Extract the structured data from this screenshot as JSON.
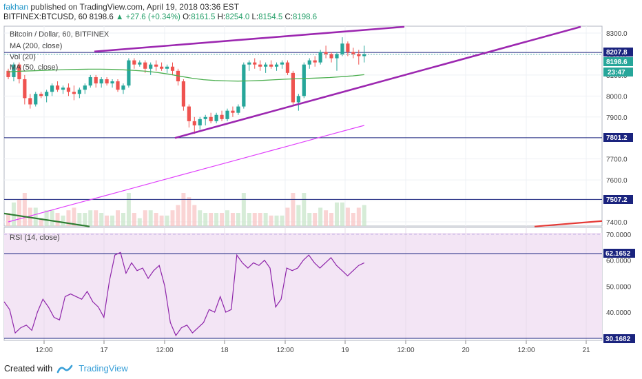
{
  "header": {
    "author": "fakhan",
    "published": "published on TradingView.com, April 19, 2018 03:36 EST",
    "symbol": "BITFINEX:BTCUSD, 60",
    "last": "8198.6",
    "change": "▲ +27.6 (+0.34%)",
    "o_label": "O:",
    "o": "8161.5",
    "h_label": "H:",
    "h": "8254.0",
    "l_label": "L:",
    "l": "8154.5",
    "c_label": "C:",
    "c": "8198.6"
  },
  "legend": {
    "title": "Bitcoin / Dollar, 60, BITFINEX",
    "ma200": "MA (200, close)",
    "vol": "Vol (20)",
    "ma50": "MA (50, close)",
    "rsi": "RSI (14, close)"
  },
  "price_tags": {
    "resistance": "8207.8",
    "last": "8198.6",
    "countdown": "23:47",
    "support1": "7801.2",
    "support2": "7507.2"
  },
  "rsi_tags": {
    "upper": "62.1652",
    "lower": "30.1682"
  },
  "footer": {
    "created": "Created with",
    "brand": "TradingView"
  },
  "colors": {
    "up": "#26a69a",
    "down": "#ef5350",
    "ma50": "#4caf50",
    "ma200": "#e040fb",
    "trend": "#9c27b0",
    "level": "#1a237e",
    "rsi": "#8e24aa",
    "rsi_bg": "#f3e5f5"
  },
  "chart_data": {
    "type": "candlestick",
    "price_axis": {
      "ticks": [
        "8300.0",
        "8200.0",
        "8100.0",
        "8000.0",
        "7900.0",
        "7800.0",
        "7700.0",
        "7600.0",
        "7500.0",
        "7400.0"
      ],
      "range": [
        7370,
        8335
      ]
    },
    "time_axis": {
      "ticks": [
        "12:00",
        "17",
        "12:00",
        "18",
        "12:00",
        "19",
        "12:00",
        "20",
        "12:00",
        "21"
      ]
    },
    "rsi_axis": {
      "ticks": [
        "70.0000",
        "60.0000",
        "50.0000",
        "40.0000"
      ],
      "range": [
        28,
        72
      ]
    },
    "candles": [
      [
        8120,
        8130,
        8080,
        8090
      ],
      [
        8090,
        8160,
        8070,
        8150
      ],
      [
        8150,
        8160,
        8060,
        8080
      ],
      [
        8080,
        8100,
        7960,
        7990
      ],
      [
        7990,
        8010,
        7940,
        7960
      ],
      [
        7960,
        8020,
        7950,
        8010
      ],
      [
        8010,
        8020,
        7990,
        8000
      ],
      [
        8000,
        8030,
        7970,
        8020
      ],
      [
        8020,
        8060,
        8000,
        8050
      ],
      [
        8050,
        8070,
        8020,
        8030
      ],
      [
        8030,
        8050,
        8010,
        8040
      ],
      [
        8040,
        8060,
        8000,
        8020
      ],
      [
        8020,
        8050,
        7980,
        8010
      ],
      [
        8010,
        8040,
        7990,
        8030
      ],
      [
        8030,
        8060,
        8010,
        8050
      ],
      [
        8050,
        8100,
        8040,
        8090
      ],
      [
        8090,
        8100,
        8040,
        8060
      ],
      [
        8060,
        8090,
        8040,
        8080
      ],
      [
        8080,
        8090,
        8050,
        8060
      ],
      [
        8060,
        8080,
        8040,
        8070
      ],
      [
        8070,
        8080,
        8020,
        8030
      ],
      [
        8030,
        8060,
        8010,
        8050
      ],
      [
        8050,
        8180,
        8040,
        8170
      ],
      [
        8170,
        8180,
        8130,
        8150
      ],
      [
        8150,
        8170,
        8140,
        8160
      ],
      [
        8160,
        8170,
        8110,
        8130
      ],
      [
        8130,
        8160,
        8100,
        8150
      ],
      [
        8150,
        8170,
        8120,
        8140
      ],
      [
        8140,
        8160,
        8120,
        8130
      ],
      [
        8130,
        8150,
        8110,
        8140
      ],
      [
        8140,
        8160,
        8100,
        8120
      ],
      [
        8120,
        8130,
        8050,
        8070
      ],
      [
        8070,
        8080,
        7930,
        7950
      ],
      [
        7950,
        7960,
        7850,
        7880
      ],
      [
        7880,
        7900,
        7820,
        7860
      ],
      [
        7860,
        7900,
        7840,
        7890
      ],
      [
        7890,
        7910,
        7860,
        7900
      ],
      [
        7900,
        7920,
        7870,
        7880
      ],
      [
        7880,
        7920,
        7870,
        7910
      ],
      [
        7910,
        7930,
        7880,
        7890
      ],
      [
        7890,
        7940,
        7880,
        7930
      ],
      [
        7930,
        7950,
        7900,
        7920
      ],
      [
        7920,
        7960,
        7910,
        7950
      ],
      [
        7950,
        8160,
        7940,
        8150
      ],
      [
        8150,
        8170,
        8120,
        8160
      ],
      [
        8160,
        8180,
        8130,
        8150
      ],
      [
        8150,
        8170,
        8120,
        8140
      ],
      [
        8140,
        8160,
        8110,
        8150
      ],
      [
        8150,
        8170,
        8130,
        8140
      ],
      [
        8140,
        8160,
        8120,
        8150
      ],
      [
        8150,
        8170,
        8130,
        8160
      ],
      [
        8160,
        8170,
        8100,
        8110
      ],
      [
        8110,
        8120,
        7950,
        7970
      ],
      [
        7970,
        8010,
        7930,
        8000
      ],
      [
        8000,
        8160,
        7990,
        8150
      ],
      [
        8150,
        8180,
        8130,
        8170
      ],
      [
        8170,
        8190,
        8140,
        8160
      ],
      [
        8160,
        8220,
        8150,
        8210
      ],
      [
        8210,
        8240,
        8180,
        8200
      ],
      [
        8200,
        8210,
        8160,
        8180
      ],
      [
        8180,
        8210,
        8120,
        8200
      ],
      [
        8200,
        8280,
        8190,
        8250
      ],
      [
        8250,
        8260,
        8190,
        8210
      ],
      [
        8210,
        8230,
        8180,
        8200
      ],
      [
        8200,
        8220,
        8150,
        8190
      ],
      [
        8190,
        8240,
        8160,
        8199
      ]
    ],
    "ma50": [
      8115,
      8118,
      8120,
      8122,
      8124,
      8126,
      8127,
      8128,
      8128,
      8127,
      8125,
      8122,
      8118,
      8112,
      8104,
      8094,
      8085,
      8078,
      8074,
      8072,
      8071,
      8072,
      8074,
      8077,
      8080,
      8082,
      8084,
      8086,
      8088,
      8092,
      8096,
      8102
    ],
    "ma200": [
      7400,
      7420,
      7440,
      7460,
      7480,
      7500,
      7520,
      7540,
      7560,
      7580,
      7600,
      7620,
      7640,
      7660,
      7680,
      7700,
      7720,
      7740,
      7760,
      7780,
      7800,
      7820,
      7840,
      7860
    ],
    "rsi": [
      44,
      41,
      32,
      34,
      35,
      33,
      40,
      45,
      42,
      38,
      37,
      46,
      47,
      46,
      45,
      48,
      44,
      42,
      38,
      52,
      62,
      63,
      55,
      59,
      56,
      57,
      53,
      56,
      58,
      50,
      36,
      31,
      34,
      35,
      32,
      34,
      36,
      41,
      40,
      46,
      40,
      41,
      62,
      59,
      57,
      59,
      58,
      60,
      57,
      42,
      45,
      57,
      56,
      57,
      60,
      62,
      59,
      57,
      59,
      61,
      58,
      56,
      54,
      56,
      58,
      59
    ]
  }
}
